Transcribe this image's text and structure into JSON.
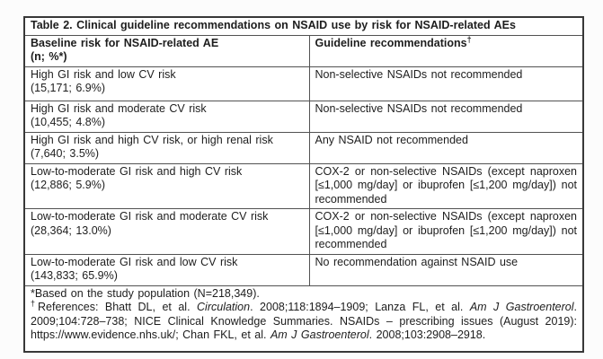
{
  "table": {
    "title": "Table 2. Clinical guideline recommendations on NSAID use by risk for NSAID-related AEs",
    "header": {
      "left_line1": "Baseline risk for NSAID-related AE",
      "left_line2": "(n; %*)",
      "right_label": "Guideline recommendations",
      "right_superscript": "†"
    },
    "rows": [
      {
        "risk": "High GI risk and low CV risk",
        "population": "(15,171; 6.9%)",
        "recommendation": "Non-selective NSAIDs not recommended"
      },
      {
        "risk": "High GI risk and moderate CV risk",
        "population": "(10,455; 4.8%)",
        "recommendation": "Non-selective NSAIDs not recommended"
      },
      {
        "risk": "High GI risk and high CV risk, or high renal risk",
        "population": "(7,640; 3.5%)",
        "recommendation": "Any NSAID not recommended"
      },
      {
        "risk": "Low-to-moderate GI risk and high CV risk",
        "population": "(12,886; 5.9%)",
        "recommendation": "COX-2 or non-selective NSAIDs (except naproxen [≤1,000 mg/day] or ibuprofen [≤1,200 mg/day]) not recommended"
      },
      {
        "risk": "Low-to-moderate GI risk and moderate CV risk",
        "population": "(28,364; 13.0%)",
        "recommendation": "COX-2 or non-selective NSAIDs (except naproxen [≤1,000 mg/day] or ibuprofen [≤1,200 mg/day]) not recommended"
      },
      {
        "risk": "Low-to-moderate GI risk and low CV risk",
        "population": "(143,833; 65.9%)",
        "recommendation": "No recommendation against NSAID use"
      }
    ],
    "footnotes": {
      "study_population": "*Based on the study population (N=218,349).",
      "references": {
        "dagger": "†",
        "segments": [
          {
            "text": "References: Bhatt DL, et al. "
          },
          {
            "text": "Circulation",
            "italic": true
          },
          {
            "text": ". 2008;118:1894–1909; Lanza FL, et al. "
          },
          {
            "text": "Am J Gastroenterol",
            "italic": true
          },
          {
            "text": ". 2009;104:728–738; NICE Clinical Knowledge Summaries. NSAIDs – prescribing issues (August 2019): https://www.evidence.nhs.uk/; Chan FKL, et al. "
          },
          {
            "text": "Am J Gastroenterol",
            "italic": true
          },
          {
            "text": ". 2008;103:2908–2918."
          }
        ]
      }
    }
  }
}
